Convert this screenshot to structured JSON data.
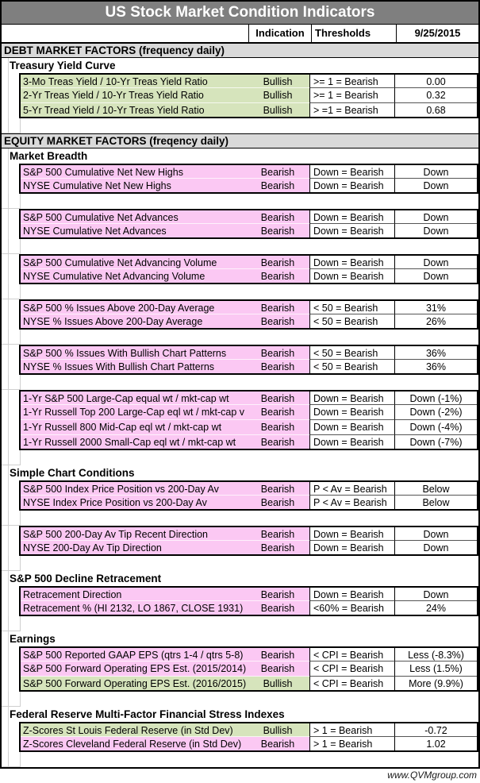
{
  "title": "US Stock Market Condition Indicators",
  "columns": {
    "indication": "Indication",
    "thresholds": "Thresholds",
    "date": "9/25/2015"
  },
  "footer": "www.QVMgroup.com",
  "colors": {
    "bullish": "#d6e4bc",
    "bearish": "#fbc8f3",
    "title_bg": "#7f7f7f",
    "section_bg": "#d9d9d9"
  },
  "rows": [
    {
      "type": "section",
      "label": "DEBT MARKET FACTORS (frequency daily)"
    },
    {
      "type": "subsection",
      "label": "Treasury Yield Curve"
    },
    {
      "type": "data",
      "sentiment": "bullish",
      "name": "3-Mo Treas Yield / 10-Yr Treas Yield Ratio",
      "indication": "Bullish",
      "threshold": ">= 1 = Bearish",
      "value": "0.00"
    },
    {
      "type": "data",
      "sentiment": "bullish",
      "name": "2-Yr Treas Yield / 10-Yr Treas Yield Ratio",
      "indication": "Bullish",
      "threshold": ">= 1 = Bearish",
      "value": "0.32"
    },
    {
      "type": "data",
      "sentiment": "bullish",
      "name": "5-Yr Tread Yield / 10-Yr Treas Yield Ratio",
      "indication": "Bullish",
      "threshold": "> =1 = Bearish",
      "value": "0.68"
    },
    {
      "type": "blank"
    },
    {
      "type": "section",
      "label": "EQUITY MARKET FACTORS (freqency daily)"
    },
    {
      "type": "subsection",
      "label": "Market Breadth"
    },
    {
      "type": "data",
      "sentiment": "bearish",
      "name": "S&P 500 Cumulative Net New Highs",
      "indication": "Bearish",
      "threshold": "Down = Bearish",
      "value": "Down"
    },
    {
      "type": "data",
      "sentiment": "bearish",
      "name": "NYSE Cumulative Net New Highs",
      "indication": "Bearish",
      "threshold": "Down = Bearish",
      "value": "Down"
    },
    {
      "type": "blank"
    },
    {
      "type": "data",
      "sentiment": "bearish",
      "name": "S&P 500 Cumulative Net Advances",
      "indication": "Bearish",
      "threshold": "Down = Bearish",
      "value": "Down"
    },
    {
      "type": "data",
      "sentiment": "bearish",
      "name": "NYSE Cumulative Net Advances",
      "indication": "Bearish",
      "threshold": "Down = Bearish",
      "value": "Down"
    },
    {
      "type": "blank"
    },
    {
      "type": "data",
      "sentiment": "bearish",
      "name": "S&P 500 Cumulative Net Advancing Volume",
      "indication": "Bearish",
      "threshold": "Down = Bearish",
      "value": "Down"
    },
    {
      "type": "data",
      "sentiment": "bearish",
      "name": "NYSE Cumulative Net Advancing Volume",
      "indication": "Bearish",
      "threshold": "Down = Bearish",
      "value": "Down"
    },
    {
      "type": "blank"
    },
    {
      "type": "data",
      "sentiment": "bearish",
      "name": "S&P 500 % Issues Above 200-Day Average",
      "indication": "Bearish",
      "threshold": "< 50 = Bearish",
      "value": "31%"
    },
    {
      "type": "data",
      "sentiment": "bearish",
      "name": "NYSE % Issues Above 200-Day Average",
      "indication": "Bearish",
      "threshold": "< 50 = Bearish",
      "value": "26%"
    },
    {
      "type": "blank"
    },
    {
      "type": "data",
      "sentiment": "bearish",
      "name": "S&P 500 % Issues With Bullish Chart Patterns",
      "indication": "Bearish",
      "threshold": "< 50 = Bearish",
      "value": "36%"
    },
    {
      "type": "data",
      "sentiment": "bearish",
      "name": "NYSE % Issues With Bullish Chart Patterns",
      "indication": "Bearish",
      "threshold": "< 50 = Bearish",
      "value": "36%"
    },
    {
      "type": "blank"
    },
    {
      "type": "data",
      "sentiment": "bearish",
      "name": "1-Yr S&P 500 Large-Cap equal wt / mkt-cap wt",
      "indication": "Bearish",
      "threshold": "Down = Bearish",
      "value": "Down (-1%)"
    },
    {
      "type": "data",
      "sentiment": "bearish",
      "name": "1-Yr Russell Top 200 Large-Cap eql wt / mkt-cap v",
      "indication": "Bearish",
      "threshold": "Down = Bearish",
      "value": "Down (-2%)"
    },
    {
      "type": "data",
      "sentiment": "bearish",
      "name": "1-Yr Russell 800 Mid-Cap eql wt / mkt-cap wt",
      "indication": "Bearish",
      "threshold": "Down = Bearish",
      "value": "Down (-4%)"
    },
    {
      "type": "data",
      "sentiment": "bearish",
      "name": "1-Yr Russell 2000 Small-Cap eql wt / mkt-cap wt",
      "indication": "Bearish",
      "threshold": "Down = Bearish",
      "value": "Down (-7%)"
    },
    {
      "type": "blank"
    },
    {
      "type": "subsection",
      "label": "Simple Chart Conditions"
    },
    {
      "type": "data",
      "sentiment": "bearish",
      "name": "S&P 500 Index Price Position vs 200-Day Av",
      "indication": "Bearish",
      "threshold": "P < Av = Bearish",
      "value": "Below"
    },
    {
      "type": "data",
      "sentiment": "bearish",
      "name": "NYSE Index Price Position vs 200-Day Av",
      "indication": "Bearish",
      "threshold": "P < Av = Bearish",
      "value": "Below"
    },
    {
      "type": "blank"
    },
    {
      "type": "data",
      "sentiment": "bearish",
      "name": "S&P 500 200-Day Av Tip Recent Direction",
      "indication": "Bearish",
      "threshold": "Down = Bearish",
      "value": "Down"
    },
    {
      "type": "data",
      "sentiment": "bearish",
      "name": "NYSE 200-Day Av Tip Direction",
      "indication": "Bearish",
      "threshold": "Down = Bearish",
      "value": "Down"
    },
    {
      "type": "blank"
    },
    {
      "type": "subsection",
      "label": "S&P 500 Decline Retracement"
    },
    {
      "type": "data",
      "sentiment": "bearish",
      "name": "Retracement Direction",
      "indication": "Bearish",
      "threshold": "Down = Bearish",
      "value": "Down"
    },
    {
      "type": "data",
      "sentiment": "bearish",
      "name": "Retracement % (HI 2132, LO 1867, CLOSE 1931)",
      "indication": "Bearish",
      "threshold": "<60% = Bearish",
      "value": "24%"
    },
    {
      "type": "blank"
    },
    {
      "type": "subsection",
      "label": "Earnings"
    },
    {
      "type": "data",
      "sentiment": "bearish",
      "name": "S&P 500 Reported GAAP EPS (qtrs 1-4 / qtrs 5-8)",
      "indication": "Bearish",
      "threshold": "< CPI = Bearish",
      "value": "Less (-8.3%)"
    },
    {
      "type": "data",
      "sentiment": "bearish",
      "name": "S&P 500 Forward Operating EPS Est. (2015/2014)",
      "indication": "Bearish",
      "threshold": "< CPI = Bearish",
      "value": "Less (1.5%)"
    },
    {
      "type": "data",
      "sentiment": "bullish",
      "name": "S&P 500 Forward Operating EPS Est. (2016/2015)",
      "indication": "Bullish",
      "threshold": "< CPI = Bearish",
      "value": "More (9.9%)"
    },
    {
      "type": "blank"
    },
    {
      "type": "subsection",
      "label": "Federal Reserve Multi-Factor Financial Stress Indexes"
    },
    {
      "type": "data",
      "sentiment": "bullish",
      "name": "Z-Scores St Louis Federal Reserve (in Std Dev)",
      "indication": "Bullish",
      "threshold": "> 1 = Bearish",
      "value": "-0.72"
    },
    {
      "type": "data",
      "sentiment": "bearish",
      "name": "Z-Scores Cleveland Federal Reserve (in Std Dev)",
      "indication": "Bearish",
      "threshold": "> 1 = Bearish",
      "value": "1.02"
    },
    {
      "type": "blank"
    }
  ]
}
